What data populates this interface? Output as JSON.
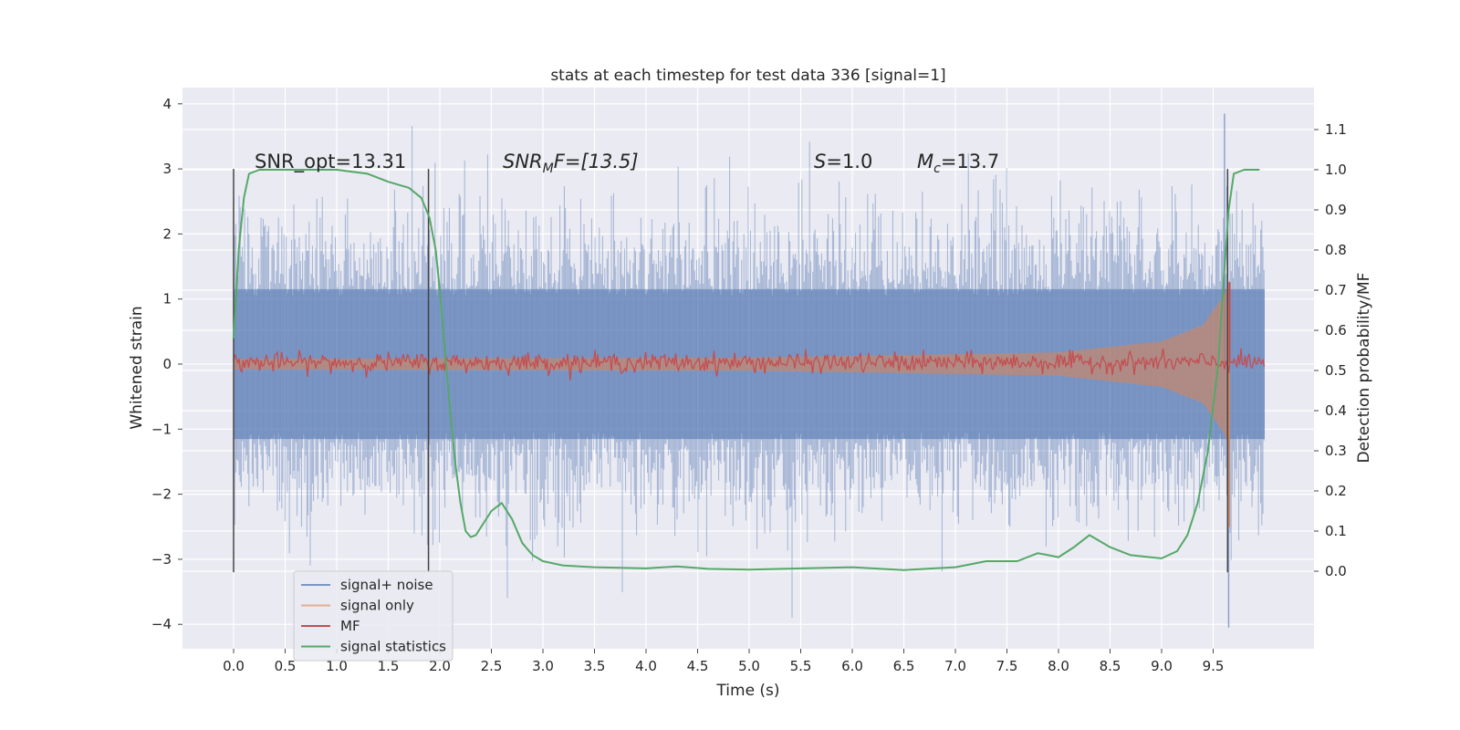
{
  "chart_data": {
    "type": "line",
    "title": "stats at each timestep for test data 336 [signal=1]",
    "xlabel": "Time (s)",
    "ylabel": "Whitened strain",
    "y2label": "Detection probability/MF",
    "xlim": [
      -0.5,
      10.5
    ],
    "ylim": [
      -4.4,
      4.2
    ],
    "y2lim": [
      -0.2,
      1.15
    ],
    "x_ticks": [
      "0.0",
      "0.5",
      "1.0",
      "1.5",
      "2.0",
      "2.5",
      "3.0",
      "3.5",
      "4.0",
      "4.5",
      "5.0",
      "5.5",
      "6.0",
      "6.5",
      "7.0",
      "7.5",
      "8.0",
      "8.5",
      "9.0",
      "9.5"
    ],
    "y_ticks": [
      "4",
      "3",
      "2",
      "1",
      "0",
      "−1",
      "−2",
      "−3",
      "−4"
    ],
    "y2_ticks": [
      "1.1",
      "1.0",
      "0.9",
      "0.8",
      "0.7",
      "0.6",
      "0.5",
      "0.4",
      "0.3",
      "0.2",
      "0.1",
      "0.0"
    ],
    "grid": true,
    "legend_position": "lower-left",
    "annotations": {
      "snr_opt": "SNR_opt=13.31",
      "snr_mf_base": "SNR",
      "snr_mf_sub": "M",
      "snr_mf_rest": "F=[13.5]",
      "s_label": "S",
      "s_rest": "=1.0",
      "mc_base": "M",
      "mc_sub": "c",
      "mc_rest": "=13.7"
    },
    "vertical_markers": [
      0.0,
      1.89,
      9.64
    ],
    "series": [
      {
        "name": "signal+ noise",
        "color": "#4c72b0",
        "axis": "left",
        "style": "noise band",
        "x_range": [
          0.0,
          10.0
        ],
        "typical_amplitude": 1.8,
        "peak_max": 3.85,
        "peak_min": -4.05
      },
      {
        "name": "signal only",
        "color": "#dd8452",
        "axis": "left",
        "style": "chirp envelope",
        "envelope": {
          "x": [
            0.0,
            5.0,
            8.0,
            9.0,
            9.4,
            9.6,
            9.66
          ],
          "y": [
            0.08,
            0.1,
            0.18,
            0.35,
            0.6,
            1.05,
            1.3
          ]
        }
      },
      {
        "name": "MF",
        "color": "#c44e52",
        "axis": "right",
        "style": "noisy line",
        "baseline": 0.52,
        "jitter": 0.012,
        "spike": {
          "x": 9.66,
          "y": 0.72
        }
      },
      {
        "name": "signal statistics",
        "color": "#55a868",
        "axis": "right",
        "style": "line",
        "x": [
          0.0,
          0.05,
          0.1,
          0.15,
          0.25,
          0.4,
          1.0,
          1.3,
          1.5,
          1.7,
          1.82,
          1.9,
          1.96,
          2.0,
          2.05,
          2.1,
          2.15,
          2.2,
          2.25,
          2.3,
          2.35,
          2.4,
          2.5,
          2.6,
          2.7,
          2.8,
          2.9,
          3.0,
          3.2,
          3.5,
          4.0,
          4.3,
          4.6,
          5.0,
          5.5,
          6.0,
          6.5,
          7.0,
          7.3,
          7.6,
          7.8,
          8.0,
          8.15,
          8.3,
          8.5,
          8.7,
          9.0,
          9.15,
          9.25,
          9.35,
          9.45,
          9.55,
          9.6,
          9.65,
          9.7,
          9.8,
          9.95
        ],
        "y": [
          0.58,
          0.8,
          0.93,
          0.99,
          1.0,
          1.0,
          1.0,
          0.99,
          0.97,
          0.955,
          0.93,
          0.88,
          0.8,
          0.7,
          0.55,
          0.4,
          0.27,
          0.17,
          0.1,
          0.085,
          0.09,
          0.11,
          0.15,
          0.17,
          0.13,
          0.07,
          0.04,
          0.025,
          0.014,
          0.01,
          0.007,
          0.012,
          0.006,
          0.004,
          0.007,
          0.01,
          0.003,
          0.01,
          0.025,
          0.025,
          0.045,
          0.035,
          0.06,
          0.09,
          0.06,
          0.04,
          0.032,
          0.05,
          0.09,
          0.17,
          0.3,
          0.52,
          0.72,
          0.9,
          0.99,
          1.0,
          1.0
        ]
      }
    ]
  }
}
